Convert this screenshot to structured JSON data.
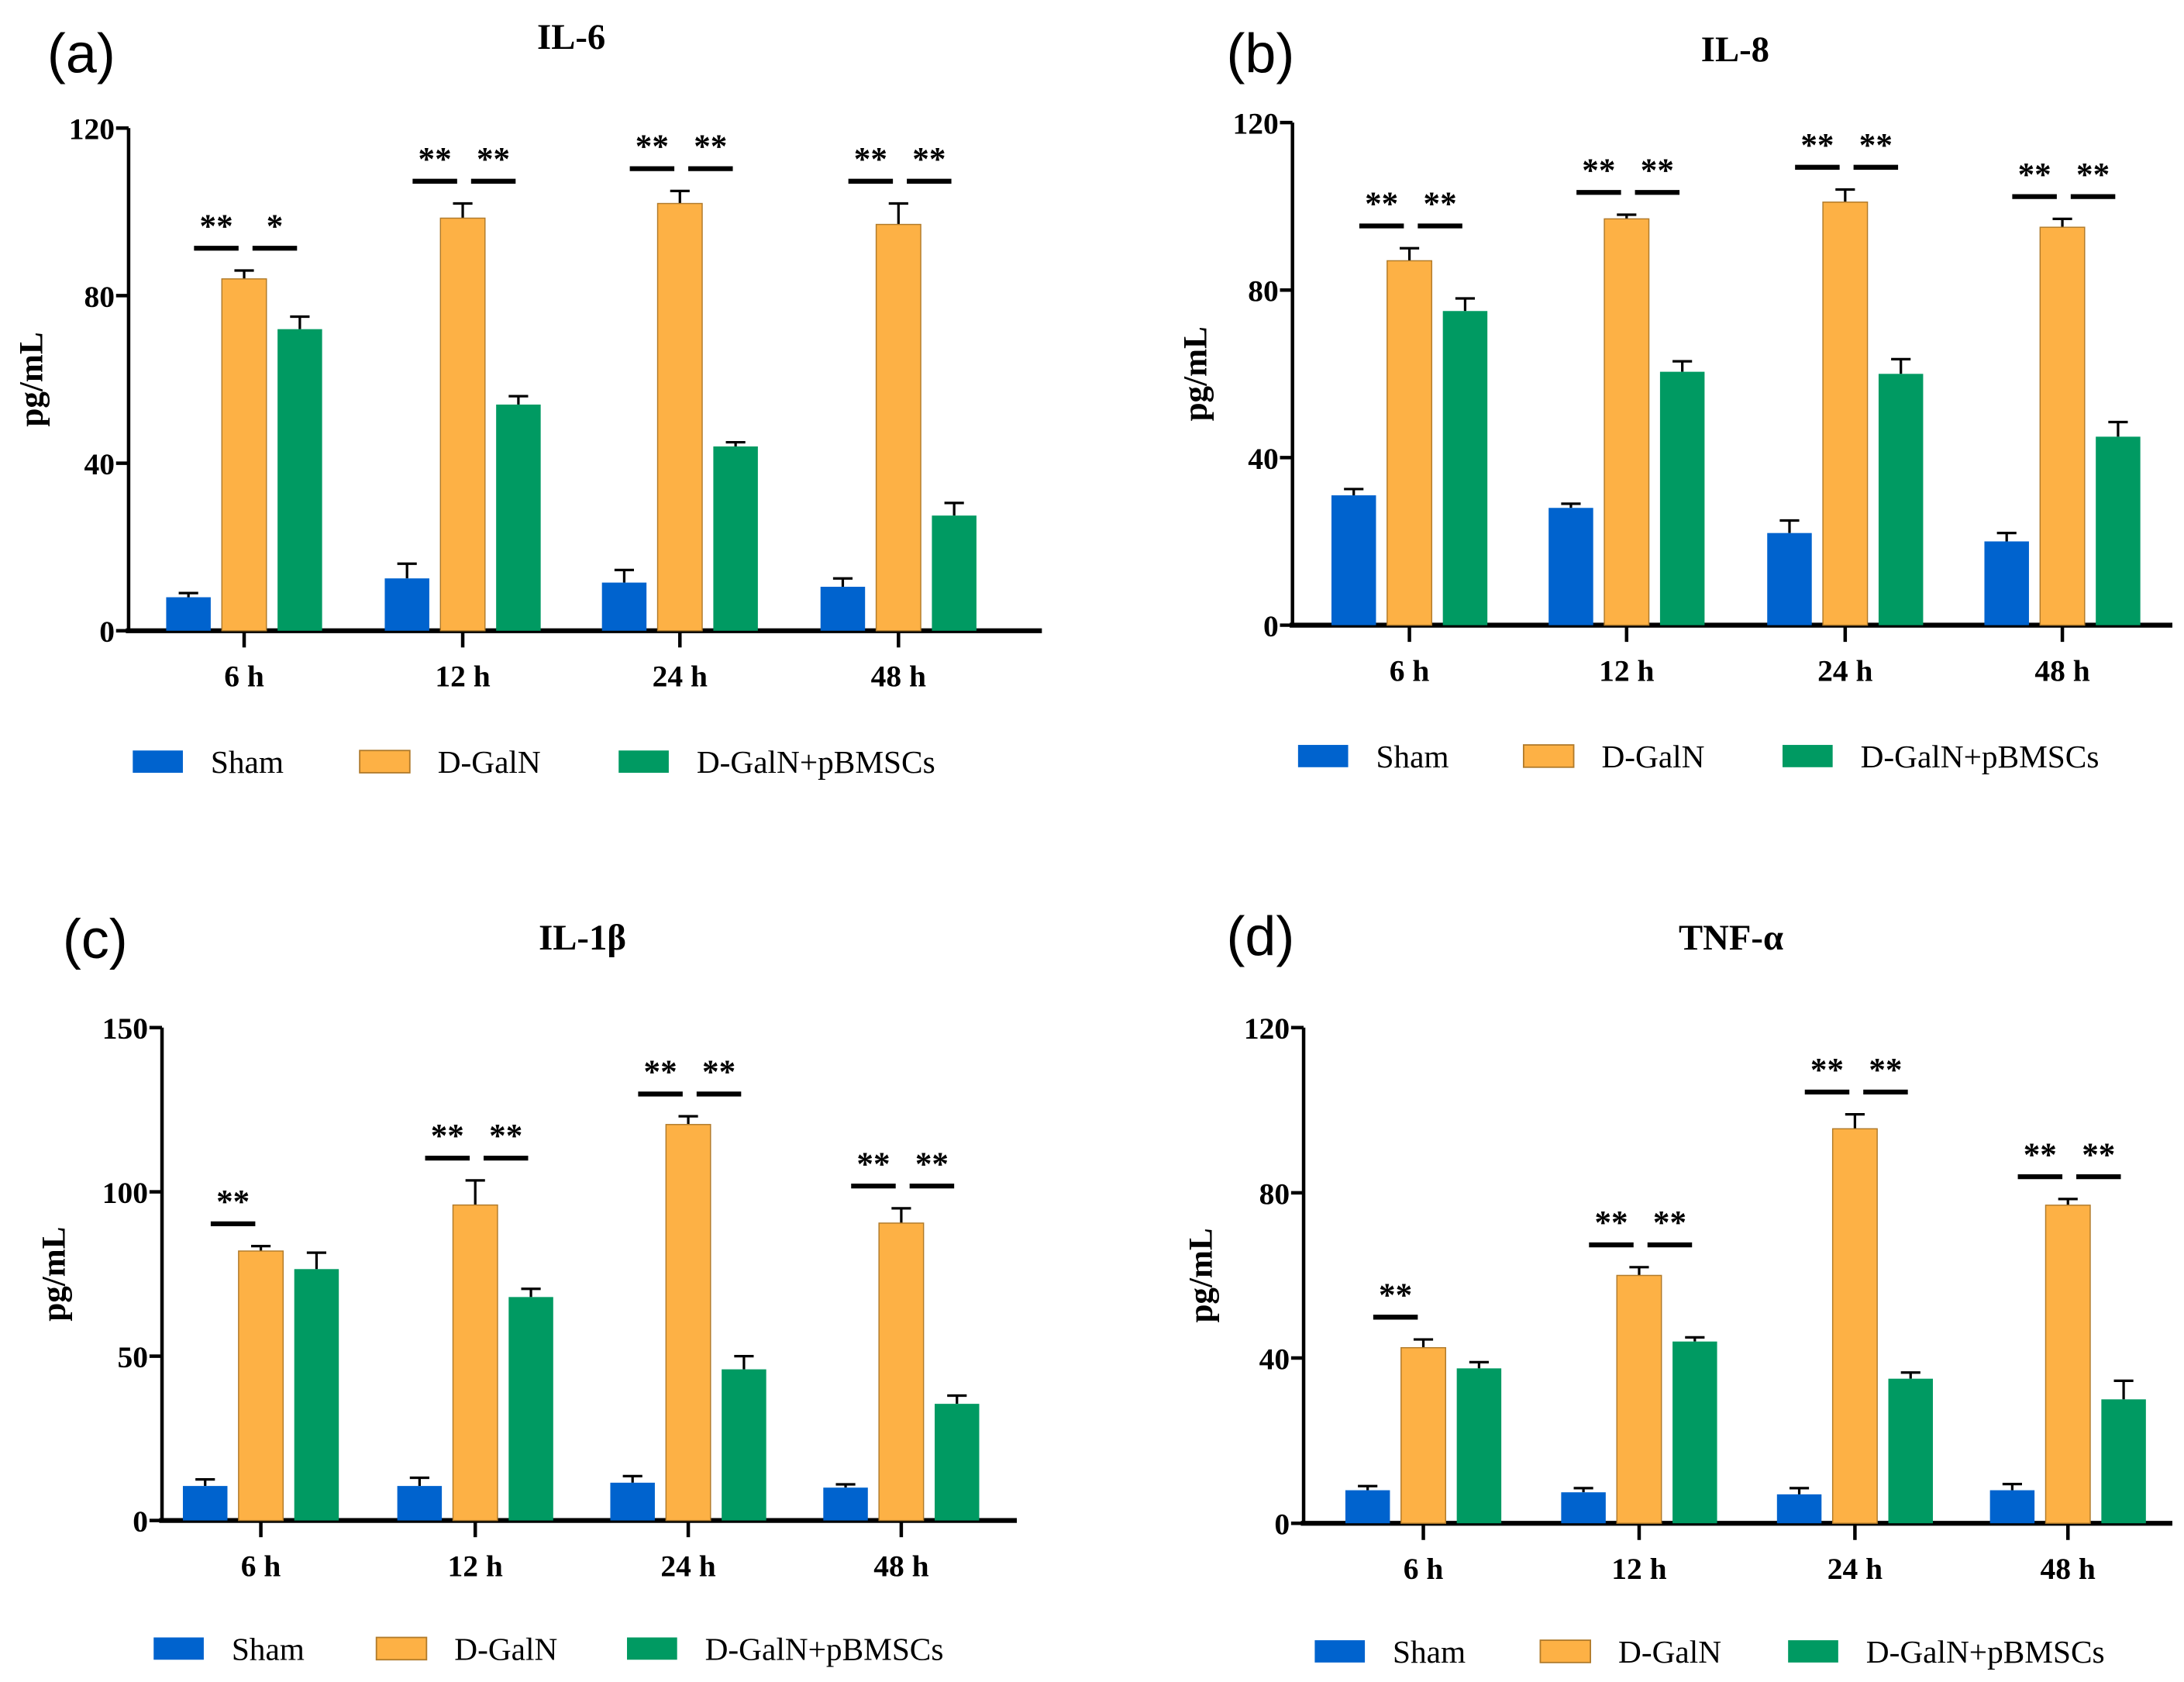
{
  "colors": {
    "Sham": "#0063CE",
    "D-GalN": "#FDB145",
    "D-GalN+pBMSCs": "#009A62"
  },
  "chart_data": [
    {
      "type": "bar",
      "panel": "(a)",
      "title": "IL-6",
      "xlabel": "",
      "ylabel": "pg/mL",
      "ylim": [
        0,
        120
      ],
      "yticks": [
        0,
        40,
        80,
        120
      ],
      "categories": [
        "6 h",
        "12 h",
        "24 h",
        "48 h"
      ],
      "legend": "bottom",
      "series": [
        {
          "name": "Sham",
          "values": [
            8,
            12.5,
            11.5,
            10.5
          ],
          "errors": [
            1,
            3.5,
            3,
            2
          ]
        },
        {
          "name": "D-GalN",
          "values": [
            84,
            98.5,
            102,
            97
          ],
          "errors": [
            2,
            3.5,
            3,
            5
          ]
        },
        {
          "name": "D-GalN+pBMSCs",
          "values": [
            72,
            54,
            44,
            27.5
          ],
          "errors": [
            3,
            2,
            1,
            3
          ]
        }
      ],
      "significance": [
        [
          "**",
          "*"
        ],
        [
          "**",
          "**"
        ],
        [
          "**",
          "**"
        ],
        [
          "**",
          "**"
        ]
      ]
    },
    {
      "type": "bar",
      "panel": "(b)",
      "title": "IL-8",
      "xlabel": "",
      "ylabel": "pg/mL",
      "ylim": [
        0,
        120
      ],
      "yticks": [
        0,
        40,
        80,
        120
      ],
      "categories": [
        "6 h",
        "12 h",
        "24 h",
        "48 h"
      ],
      "legend": "bottom",
      "series": [
        {
          "name": "Sham",
          "values": [
            31,
            28,
            22,
            20
          ],
          "errors": [
            1.5,
            1,
            3,
            2
          ]
        },
        {
          "name": "D-GalN",
          "values": [
            87,
            97,
            101,
            95
          ],
          "errors": [
            3,
            1,
            3,
            2
          ]
        },
        {
          "name": "D-GalN+pBMSCs",
          "values": [
            75,
            60.5,
            60,
            45
          ],
          "errors": [
            3,
            2.5,
            3.5,
            3.5
          ]
        }
      ],
      "significance": [
        [
          "**",
          "**"
        ],
        [
          "**",
          "**"
        ],
        [
          "**",
          "**"
        ],
        [
          "**",
          "**"
        ]
      ]
    },
    {
      "type": "bar",
      "panel": "(c)",
      "title": "IL-1β",
      "xlabel": "",
      "ylabel": "pg/mL",
      "ylim": [
        0,
        150
      ],
      "yticks": [
        0,
        50,
        100,
        150
      ],
      "categories": [
        "6 h",
        "12 h",
        "24 h",
        "48 h"
      ],
      "legend": "bottom",
      "series": [
        {
          "name": "Sham",
          "values": [
            10.5,
            10.5,
            11.5,
            10
          ],
          "errors": [
            2,
            2.5,
            2,
            1
          ]
        },
        {
          "name": "D-GalN",
          "values": [
            82,
            96,
            120.5,
            90.5
          ],
          "errors": [
            1.5,
            7.5,
            2.5,
            4.5
          ]
        },
        {
          "name": "D-GalN+pBMSCs",
          "values": [
            76.5,
            68,
            46,
            35.5
          ],
          "errors": [
            5,
            2.5,
            4,
            2.5
          ]
        }
      ],
      "significance": [
        [
          "**",
          ""
        ],
        [
          "**",
          "**"
        ],
        [
          "**",
          "**"
        ],
        [
          "**",
          "**"
        ]
      ]
    },
    {
      "type": "bar",
      "panel": "(d)",
      "title": "TNF-α",
      "xlabel": "",
      "ylabel": "pg/mL",
      "ylim": [
        0,
        120
      ],
      "yticks": [
        0,
        40,
        80,
        120
      ],
      "categories": [
        "6 h",
        "12 h",
        "24 h",
        "48 h"
      ],
      "legend": "bottom",
      "series": [
        {
          "name": "Sham",
          "values": [
            8,
            7.5,
            7,
            8
          ],
          "errors": [
            1,
            1,
            1.5,
            1.5
          ]
        },
        {
          "name": "D-GalN",
          "values": [
            42.5,
            60,
            95.5,
            77
          ],
          "errors": [
            2,
            2,
            3.5,
            1.5
          ]
        },
        {
          "name": "D-GalN+pBMSCs",
          "values": [
            37.5,
            44,
            35,
            30
          ],
          "errors": [
            1.5,
            1,
            1.5,
            4.5
          ]
        }
      ],
      "significance": [
        [
          "**",
          ""
        ],
        [
          "**",
          "**"
        ],
        [
          "**",
          "**"
        ],
        [
          "**",
          "**"
        ]
      ]
    }
  ]
}
